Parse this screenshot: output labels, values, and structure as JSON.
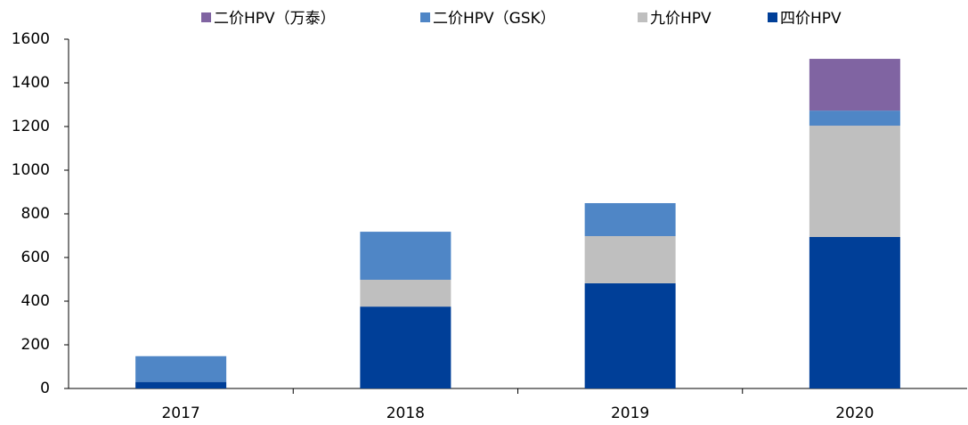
{
  "chart_data": {
    "type": "stacked_bar",
    "categories": [
      "2017",
      "2018",
      "2019",
      "2020"
    ],
    "series": [
      {
        "name": "四价HPV",
        "color": "#003f98",
        "values": [
          30,
          375,
          482,
          694
        ]
      },
      {
        "name": "九价HPV",
        "color": "#bfbfbf",
        "values": [
          0,
          123,
          216,
          510
        ]
      },
      {
        "name": "二价HPV（GSK）",
        "color": "#4f86c6",
        "values": [
          118,
          220,
          151,
          69
        ]
      },
      {
        "name": "二价HPV（万泰）",
        "color": "#8064a2",
        "values": [
          0,
          0,
          0,
          237
        ]
      }
    ],
    "legend_order": [
      3,
      2,
      1,
      0
    ],
    "ylim": [
      0,
      1600
    ],
    "yticks": [
      0,
      200,
      400,
      600,
      800,
      1000,
      1200,
      1400,
      1600
    ],
    "grid": false,
    "legend": "top"
  }
}
